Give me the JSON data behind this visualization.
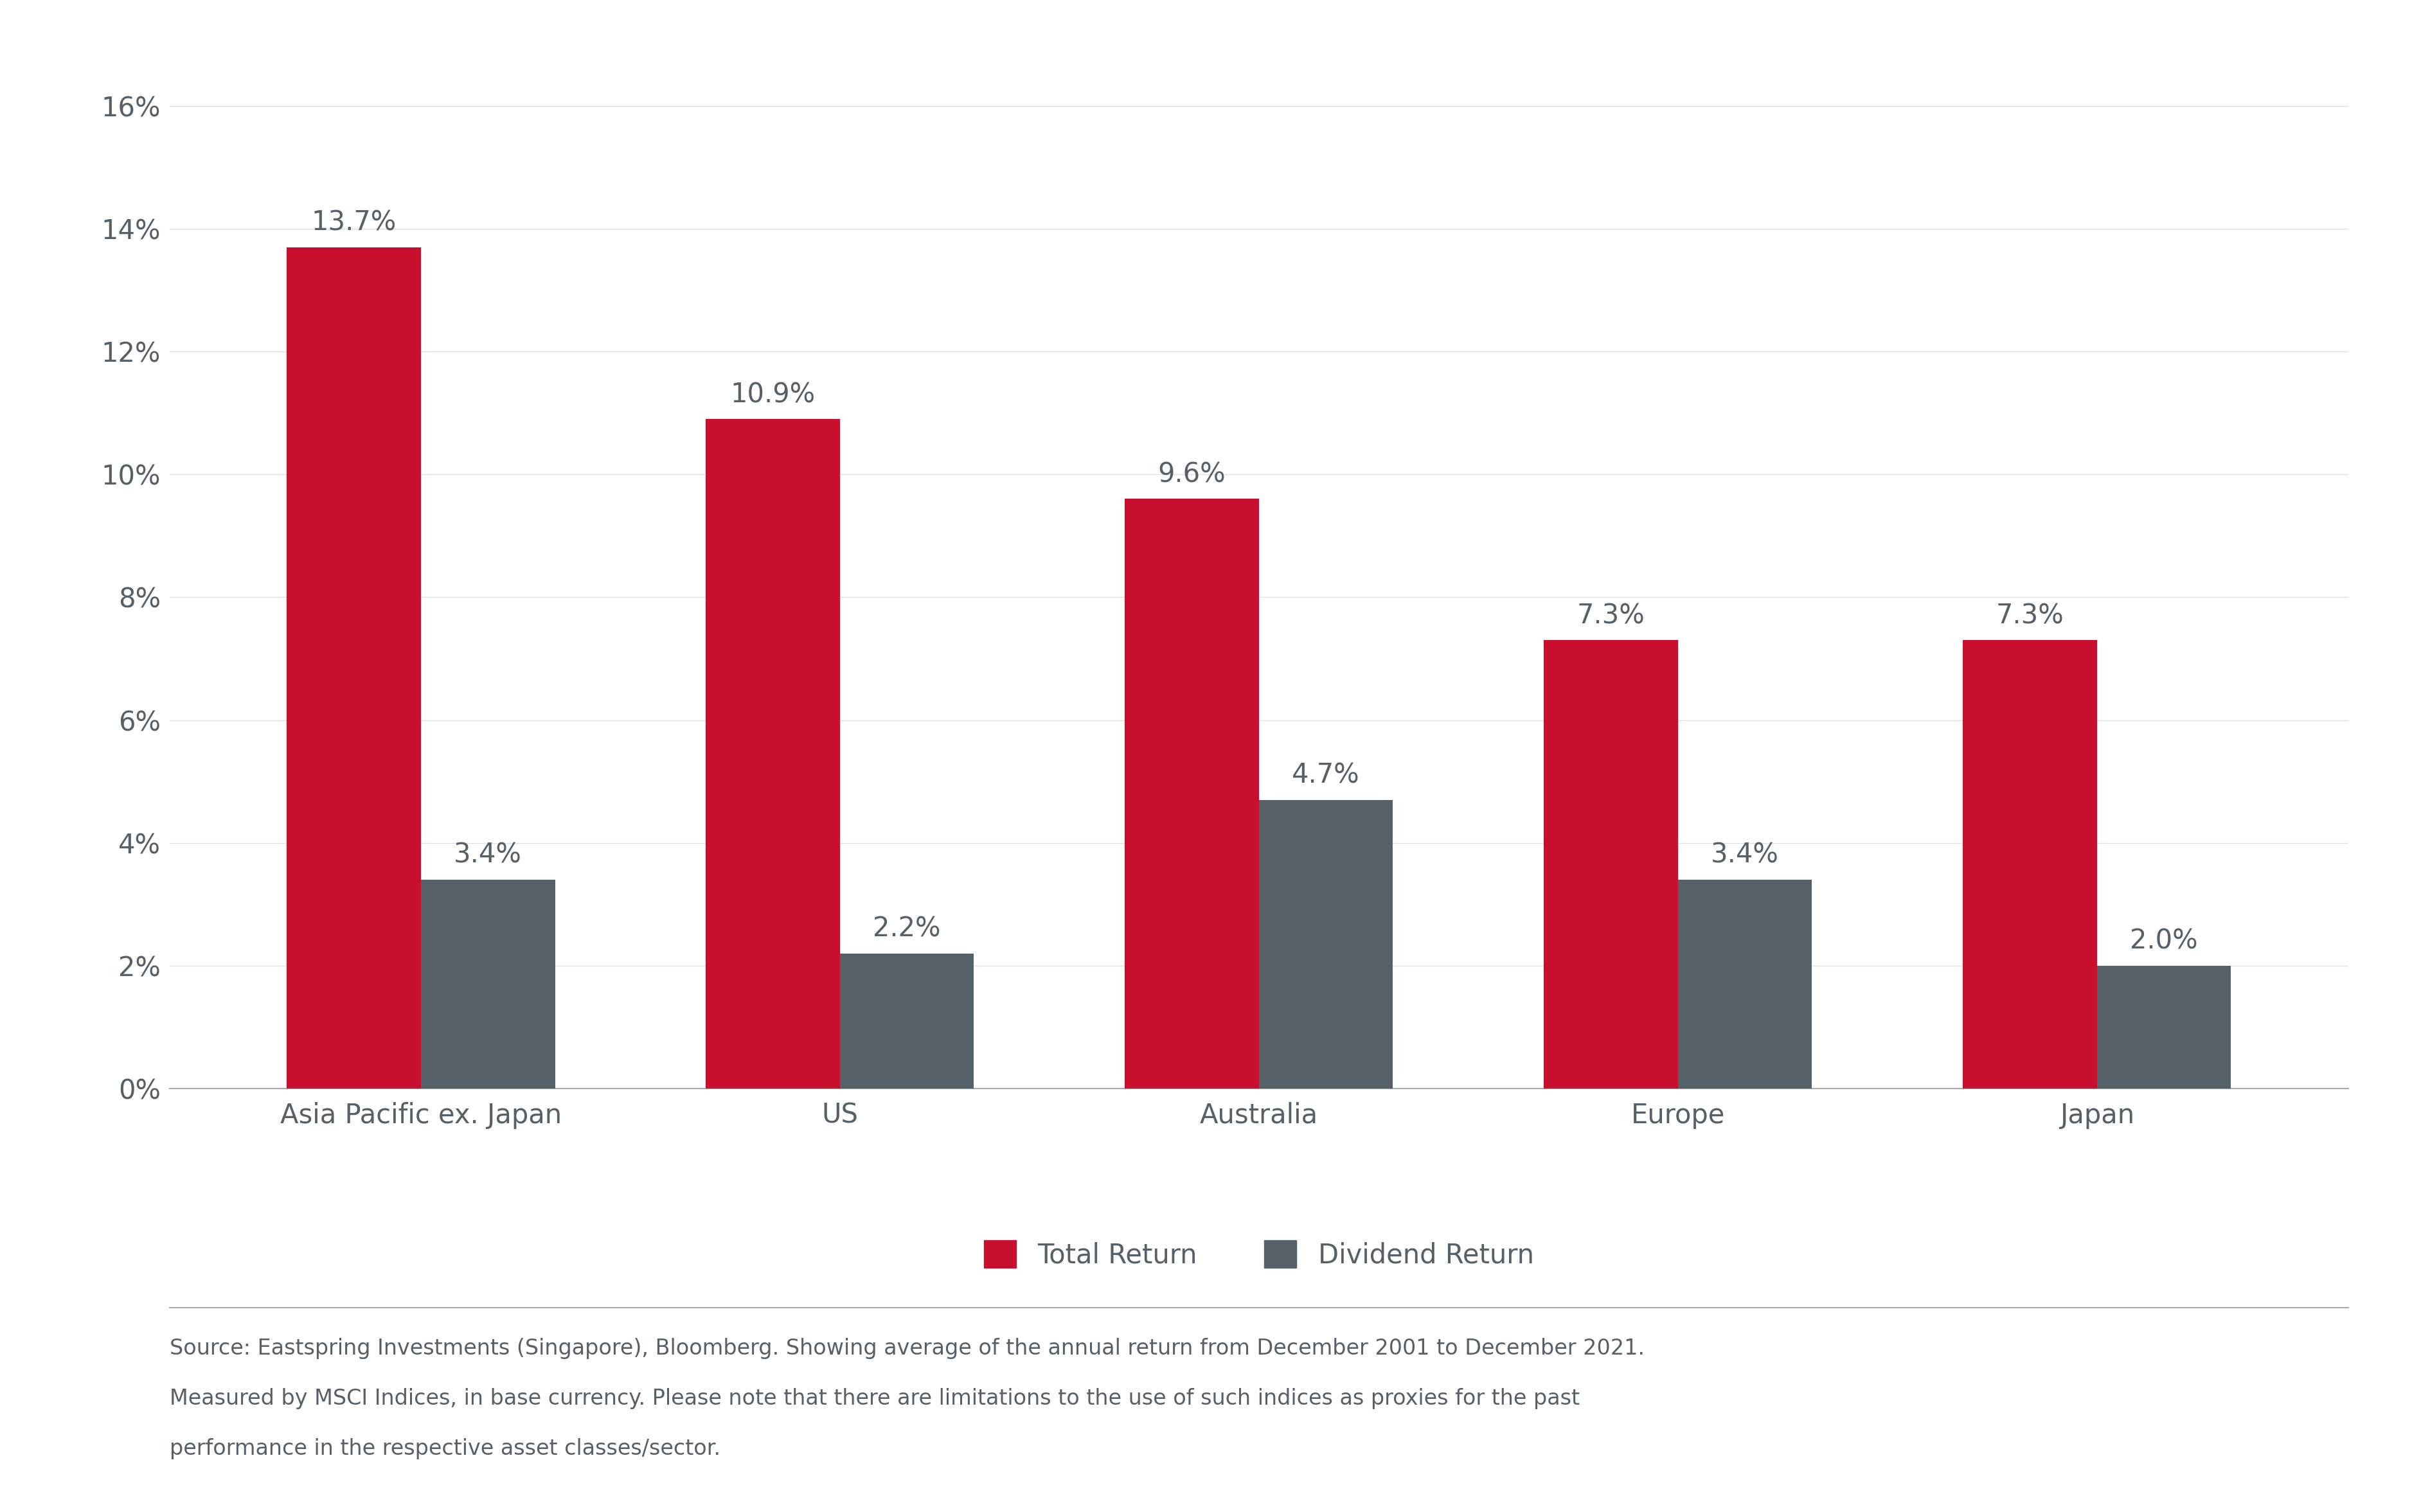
{
  "categories": [
    "Asia Pacific ex. Japan",
    "US",
    "Australia",
    "Europe",
    "Japan"
  ],
  "total_return": [
    13.7,
    10.9,
    9.6,
    7.3,
    7.3
  ],
  "dividend_return": [
    3.4,
    2.2,
    4.7,
    3.4,
    2.0
  ],
  "total_return_labels": [
    "13.7%",
    "10.9%",
    "9.6%",
    "7.3%",
    "7.3%"
  ],
  "dividend_return_labels": [
    "3.4%",
    "2.2%",
    "4.7%",
    "3.4%",
    "2.0%"
  ],
  "total_return_color": "#C8102E",
  "dividend_return_color": "#566069",
  "background_color": "#FFFFFF",
  "ylim": [
    0,
    16
  ],
  "ytick_labels": [
    "0%",
    "2%",
    "4%",
    "6%",
    "8%",
    "10%",
    "12%",
    "14%",
    "16%"
  ],
  "ytick_values": [
    0,
    2,
    4,
    6,
    8,
    10,
    12,
    14,
    16
  ],
  "legend_labels": [
    "Total Return",
    "Dividend Return"
  ],
  "bar_width": 0.32,
  "source_text_line1": "Source: Eastspring Investments (Singapore), Bloomberg. Showing average of the annual return from December 2001 to December 2021.",
  "source_text_line2": "Measured by MSCI Indices, in base currency. Please note that there are limitations to the use of such indices as proxies for the past",
  "source_text_line3": "performance in the respective asset classes/sector.",
  "tick_fontsize": 30,
  "legend_fontsize": 30,
  "source_fontsize": 24,
  "bar_label_fontsize": 30,
  "label_color": "#566069",
  "axis_color": "#566069"
}
